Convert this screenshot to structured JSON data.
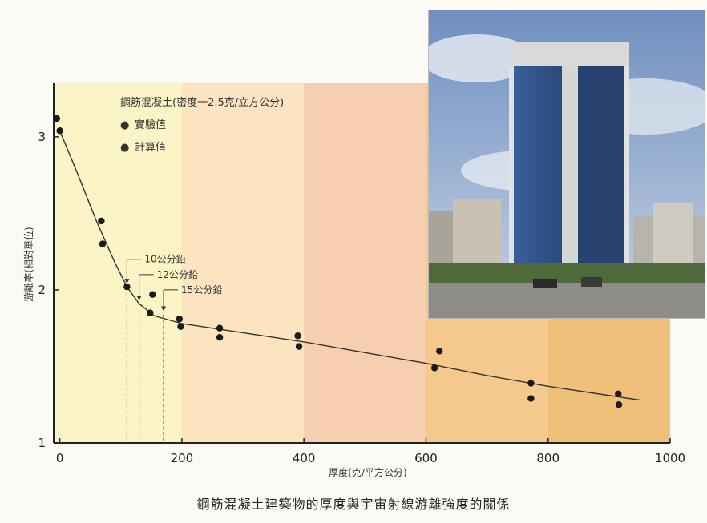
{
  "caption": "鋼筋混凝土建築物的厚度與宇宙射線游離強度的關係",
  "photo_label": "building-photo",
  "colors": {
    "band1": "#fbf4c6",
    "band2": "#fbe4bf",
    "band3": "#f6cfb1",
    "band4": "#f5c98d",
    "band5": "#f0c07a",
    "curve": "#333333",
    "point": "#1a1a1a"
  },
  "chart_data": {
    "type": "scatter",
    "legend_title": "鋼筋混凝土(密度一2.5克/立方公分)",
    "legend": [
      {
        "marker": "●",
        "label": "實驗值"
      },
      {
        "marker": "●",
        "label": "計算值"
      }
    ],
    "xlabel": "厚度(克/平方公分)",
    "ylabel": "游離率(相對單位)",
    "xlim": [
      -10,
      1000
    ],
    "ylim": [
      1,
      3.35
    ],
    "x_ticks": [
      0,
      200,
      400,
      600,
      800,
      1000
    ],
    "x_tick_labels": [
      "0",
      "200",
      "400",
      "600",
      "800",
      "1000"
    ],
    "y_ticks": [
      1,
      2,
      3
    ],
    "y_tick_labels": [
      "1",
      "2",
      "3"
    ],
    "series": [
      {
        "name": "實驗值",
        "points": [
          {
            "x": -5,
            "y": 3.12
          },
          {
            "x": 68,
            "y": 2.45
          },
          {
            "x": 110,
            "y": 2.02
          },
          {
            "x": 152,
            "y": 1.97
          },
          {
            "x": 196,
            "y": 1.81
          },
          {
            "x": 262,
            "y": 1.75
          },
          {
            "x": 390,
            "y": 1.7
          },
          {
            "x": 622,
            "y": 1.6
          },
          {
            "x": 772,
            "y": 1.39
          },
          {
            "x": 915,
            "y": 1.32
          }
        ]
      },
      {
        "name": "計算值",
        "points": [
          {
            "x": 0,
            "y": 3.04
          },
          {
            "x": 70,
            "y": 2.3
          },
          {
            "x": 148,
            "y": 1.85
          },
          {
            "x": 198,
            "y": 1.76
          },
          {
            "x": 262,
            "y": 1.69
          },
          {
            "x": 392,
            "y": 1.63
          },
          {
            "x": 614,
            "y": 1.49
          },
          {
            "x": 772,
            "y": 1.29
          },
          {
            "x": 916,
            "y": 1.25
          }
        ]
      }
    ],
    "fit_curve": [
      {
        "x": 0,
        "y": 3.04
      },
      {
        "x": 30,
        "y": 2.75
      },
      {
        "x": 60,
        "y": 2.45
      },
      {
        "x": 90,
        "y": 2.18
      },
      {
        "x": 110,
        "y": 2.02
      },
      {
        "x": 130,
        "y": 1.91
      },
      {
        "x": 155,
        "y": 1.83
      },
      {
        "x": 200,
        "y": 1.78
      },
      {
        "x": 300,
        "y": 1.72
      },
      {
        "x": 400,
        "y": 1.66
      },
      {
        "x": 500,
        "y": 1.59
      },
      {
        "x": 600,
        "y": 1.52
      },
      {
        "x": 700,
        "y": 1.44
      },
      {
        "x": 800,
        "y": 1.37
      },
      {
        "x": 950,
        "y": 1.28
      }
    ],
    "annotations": [
      {
        "text": "10公分鉛",
        "x": 110,
        "y": 2.02
      },
      {
        "text": "12公分鉛",
        "x": 130,
        "y": 1.91
      },
      {
        "text": "15公分鉛",
        "x": 170,
        "y": 1.84
      }
    ],
    "bands": [
      {
        "from": -10,
        "to": 200,
        "color": "#fbf4c6"
      },
      {
        "from": 200,
        "to": 400,
        "color": "#fbe4bf"
      },
      {
        "from": 400,
        "to": 600,
        "color": "#f6cfb1"
      },
      {
        "from": 600,
        "to": 800,
        "color": "#f5c98d"
      },
      {
        "from": 800,
        "to": 1000,
        "color": "#f0c07a"
      }
    ]
  }
}
